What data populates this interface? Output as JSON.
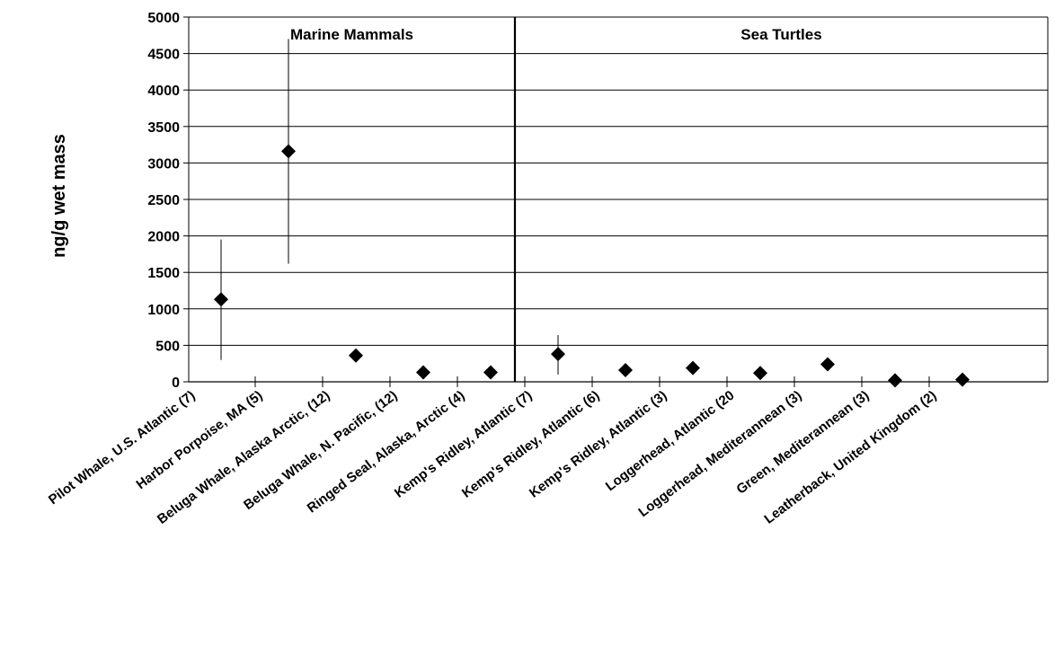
{
  "chart_data": {
    "type": "scatter",
    "title": "",
    "xlabel": "",
    "ylabel": "ng/g wet mass",
    "ylim": [
      0,
      5000
    ],
    "ytick_step": 500,
    "grid": true,
    "marker": "diamond",
    "marker_color": "#000000",
    "groups": [
      {
        "label": "Marine Mammals",
        "start": 0,
        "count": 5
      },
      {
        "label": "Sea Turtles",
        "start": 5,
        "count": 7
      }
    ],
    "categories": [
      "Pilot Whale, U.S. Atlantic (7)",
      "Harbor Porpoise, MA (5)",
      "Beluga Whale, Alaska Arctic, (12)",
      "Beluga Whale, N. Pacific, (12)",
      "Ringed Seal, Alaska, Arctic (4)",
      "Kemp's Ridley, Atlantic (7)",
      "Kemp's Ridley, Atlantic (6)",
      "Kemp's Ridley, Atlantic (3)",
      "Loggerhead, Atlantic (20",
      "Loggerhead, Mediterannean (3)",
      "Green, Mediterannean (3)",
      "Leatherback, United Kingdom (2)"
    ],
    "values": [
      1130,
      3160,
      360,
      130,
      130,
      380,
      160,
      190,
      120,
      240,
      20,
      30
    ],
    "error_low": [
      300,
      1620,
      null,
      null,
      null,
      100,
      null,
      null,
      null,
      null,
      null,
      null
    ],
    "error_high": [
      1950,
      4700,
      null,
      null,
      null,
      640,
      null,
      null,
      null,
      null,
      null,
      null
    ]
  }
}
